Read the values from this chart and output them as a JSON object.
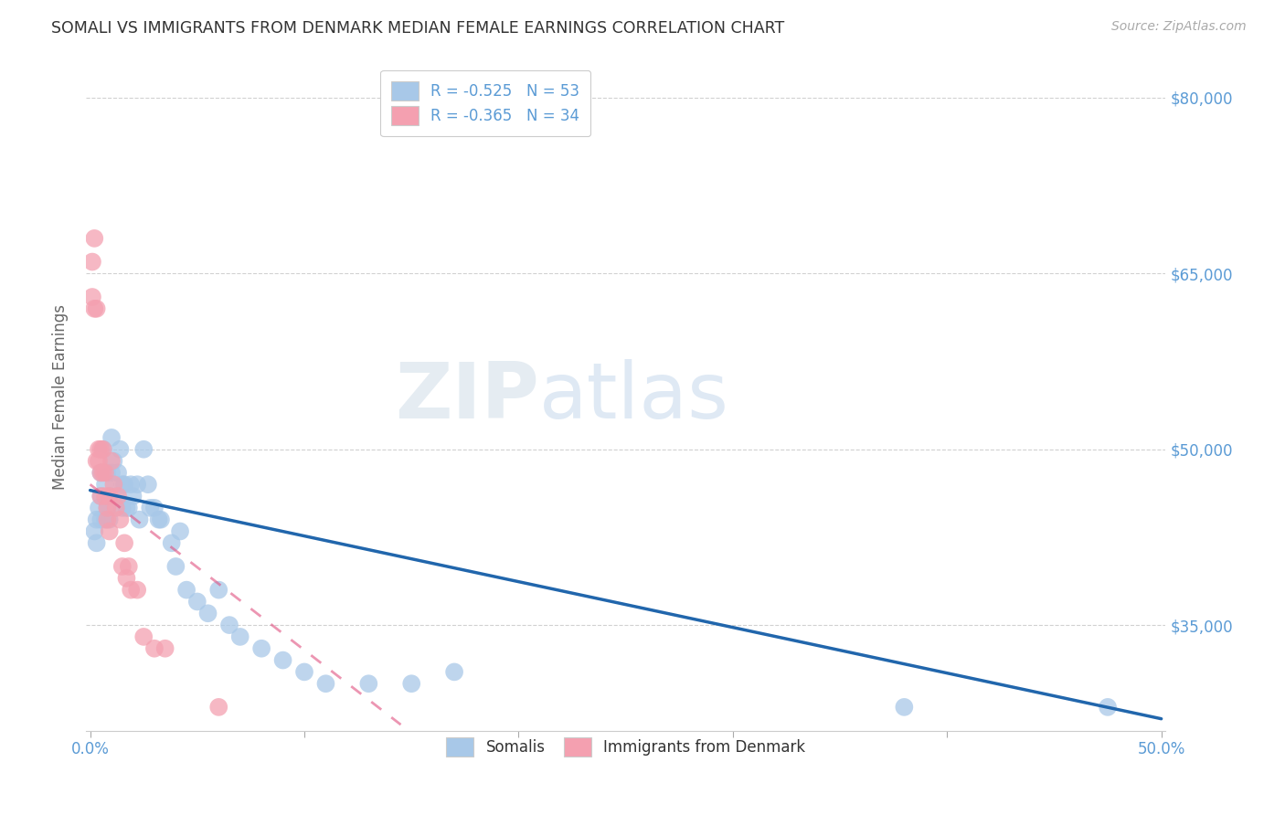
{
  "title": "SOMALI VS IMMIGRANTS FROM DENMARK MEDIAN FEMALE EARNINGS CORRELATION CHART",
  "source": "Source: ZipAtlas.com",
  "ylabel": "Median Female Earnings",
  "xlim": [
    -0.002,
    0.502
  ],
  "ylim": [
    26000,
    83000
  ],
  "yticks": [
    35000,
    50000,
    65000,
    80000
  ],
  "ytick_labels": [
    "$35,000",
    "$50,000",
    "$65,000",
    "$80,000"
  ],
  "xticks": [
    0.0,
    0.1,
    0.2,
    0.3,
    0.4,
    0.5
  ],
  "xtick_labels_show": [
    "0.0%",
    "",
    "",
    "",
    "",
    "50.0%"
  ],
  "legend_labels": [
    "Somalis",
    "Immigrants from Denmark"
  ],
  "somali_R": -0.525,
  "somali_N": 53,
  "denmark_R": -0.365,
  "denmark_N": 34,
  "somali_color": "#a8c8e8",
  "denmark_color": "#f4a0b0",
  "somali_line_color": "#2166ac",
  "denmark_line_color": "#e05080",
  "watermark_zip": "ZIP",
  "watermark_atlas": "atlas",
  "background_color": "#ffffff",
  "title_color": "#333333",
  "label_color": "#5b9bd5",
  "somalis_x": [
    0.002,
    0.003,
    0.003,
    0.004,
    0.005,
    0.005,
    0.005,
    0.006,
    0.007,
    0.007,
    0.008,
    0.008,
    0.009,
    0.009,
    0.01,
    0.01,
    0.011,
    0.012,
    0.013,
    0.014,
    0.015,
    0.015,
    0.016,
    0.017,
    0.018,
    0.019,
    0.02,
    0.022,
    0.023,
    0.025,
    0.027,
    0.028,
    0.03,
    0.032,
    0.033,
    0.038,
    0.04,
    0.042,
    0.045,
    0.05,
    0.055,
    0.06,
    0.065,
    0.07,
    0.08,
    0.09,
    0.1,
    0.11,
    0.13,
    0.15,
    0.17,
    0.38,
    0.475
  ],
  "somalis_y": [
    43000,
    44000,
    42000,
    45000,
    48000,
    46000,
    44000,
    50000,
    47000,
    44000,
    48000,
    45000,
    46000,
    44000,
    51000,
    48000,
    49000,
    46000,
    48000,
    50000,
    47000,
    45000,
    47000,
    45000,
    45000,
    47000,
    46000,
    47000,
    44000,
    50000,
    47000,
    45000,
    45000,
    44000,
    44000,
    42000,
    40000,
    43000,
    38000,
    37000,
    36000,
    38000,
    35000,
    34000,
    33000,
    32000,
    31000,
    30000,
    30000,
    30000,
    31000,
    28000,
    28000
  ],
  "denmark_x": [
    0.001,
    0.001,
    0.002,
    0.002,
    0.003,
    0.003,
    0.004,
    0.004,
    0.005,
    0.005,
    0.005,
    0.006,
    0.006,
    0.007,
    0.007,
    0.008,
    0.008,
    0.009,
    0.009,
    0.01,
    0.011,
    0.012,
    0.013,
    0.014,
    0.015,
    0.016,
    0.017,
    0.018,
    0.019,
    0.022,
    0.025,
    0.03,
    0.035,
    0.06
  ],
  "denmark_y": [
    66000,
    63000,
    62000,
    68000,
    49000,
    62000,
    50000,
    49000,
    46000,
    50000,
    48000,
    50000,
    48000,
    46000,
    48000,
    44000,
    45000,
    46000,
    43000,
    49000,
    47000,
    45000,
    46000,
    44000,
    40000,
    42000,
    39000,
    40000,
    38000,
    38000,
    34000,
    33000,
    33000,
    28000
  ],
  "somali_line_x0": 0.0,
  "somali_line_y0": 46500,
  "somali_line_x1": 0.5,
  "somali_line_y1": 27000,
  "denmark_line_x0": 0.0,
  "denmark_line_y0": 47000,
  "denmark_line_x1": 0.145,
  "denmark_line_y1": 26500
}
